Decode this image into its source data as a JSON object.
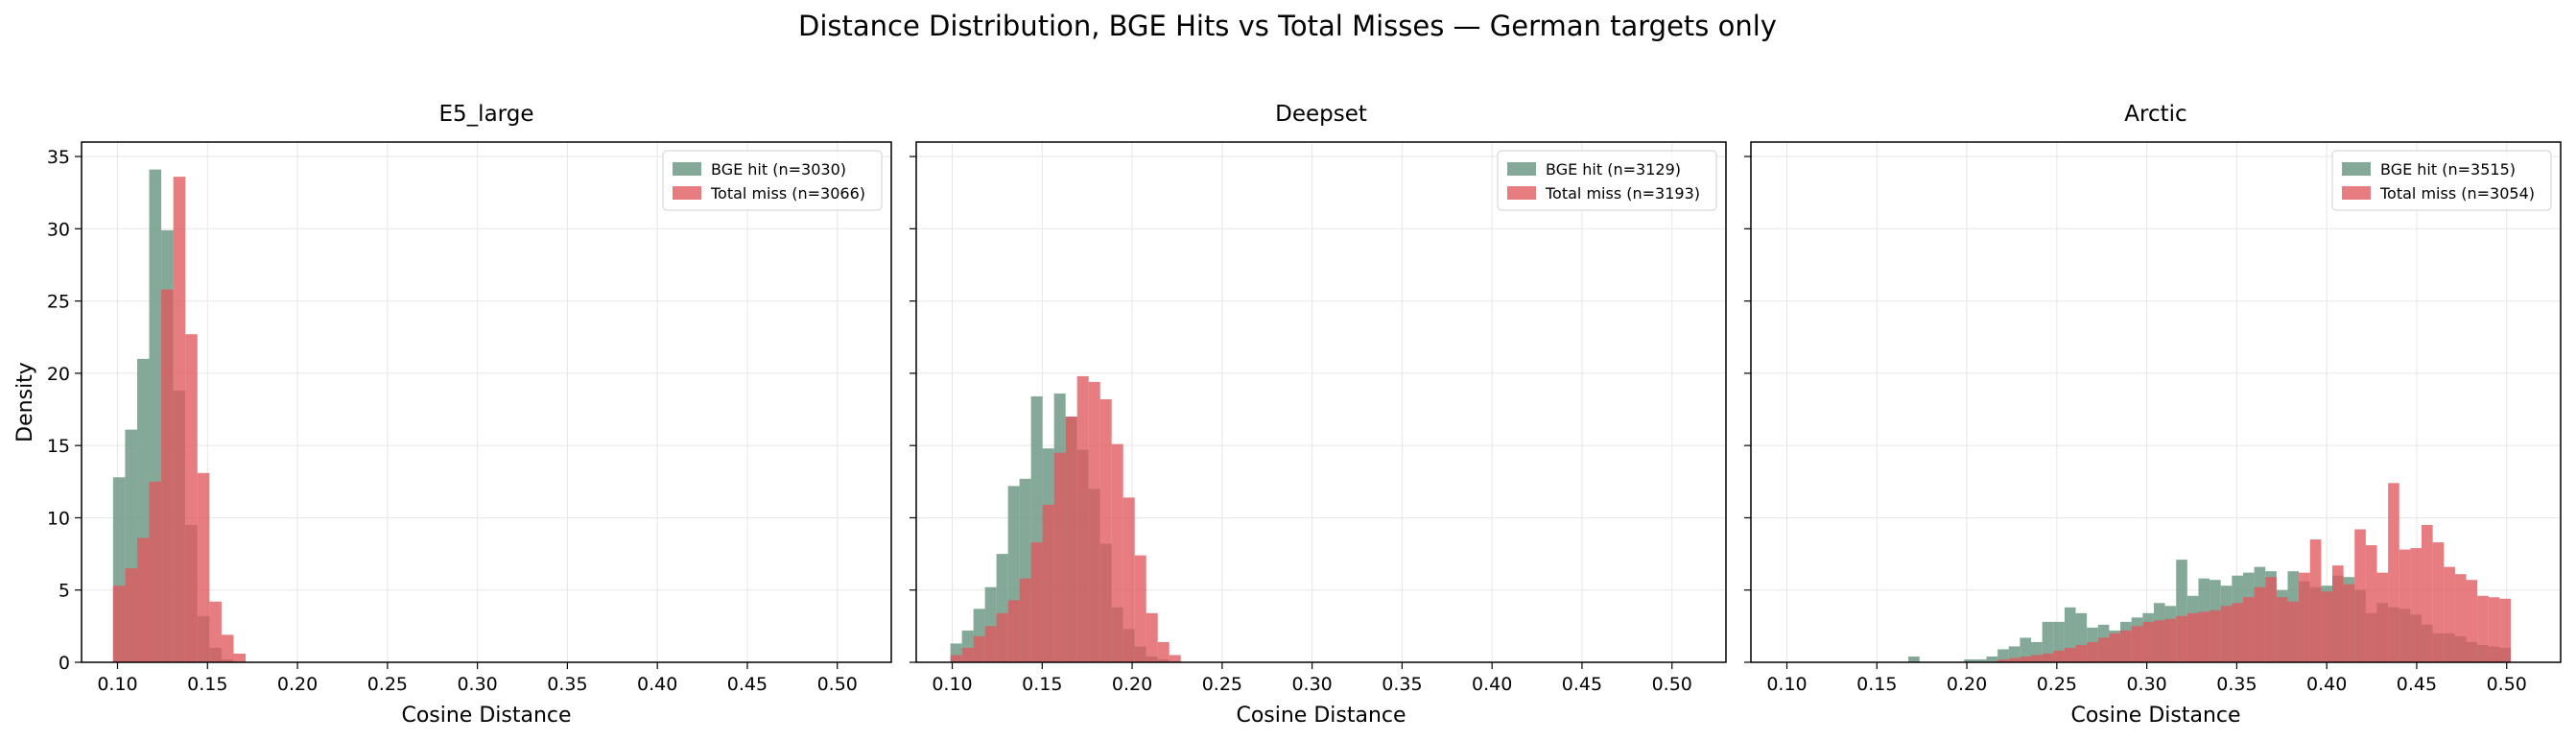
{
  "figure_title": "Distance Distribution, BGE Hits vs Total Misses — German targets only",
  "colors": {
    "hit": "#6f9a86",
    "miss": "#e0575d",
    "overlap": "#a8564f"
  },
  "chart_data": [
    {
      "type": "histogram",
      "title": "E5_large",
      "xlabel": "Cosine Distance",
      "ylabel": "Density",
      "xlim": [
        0.08,
        0.53
      ],
      "ylim": [
        0,
        36
      ],
      "xticks": [
        0.1,
        0.15,
        0.2,
        0.25,
        0.3,
        0.35,
        0.4,
        0.45,
        0.5
      ],
      "yticks": [
        0,
        5,
        10,
        15,
        20,
        25,
        30,
        35
      ],
      "xtick_labels": [
        "0.10",
        "0.15",
        "0.20",
        "0.25",
        "0.30",
        "0.35",
        "0.40",
        "0.45",
        "0.50"
      ],
      "ytick_labels": [
        "0",
        "5",
        "10",
        "15",
        "20",
        "25",
        "30",
        "35"
      ],
      "grid": true,
      "legend_position": "top-right",
      "bin_edges": [
        0.0975,
        0.1042,
        0.1109,
        0.1176,
        0.1243,
        0.131,
        0.1377,
        0.1444,
        0.1511,
        0.1578,
        0.1645,
        0.1712
      ],
      "series": [
        {
          "name": "BGE hit (n=3030)",
          "values": [
            12.8,
            16.1,
            21.0,
            34.1,
            29.9,
            18.8,
            9.5,
            3.2,
            1.0,
            0.2,
            0
          ]
        },
        {
          "name": "Total miss (n=3066)",
          "values": [
            5.3,
            6.5,
            8.6,
            12.5,
            25.8,
            33.6,
            22.7,
            13.1,
            4.2,
            1.9,
            0.6
          ]
        }
      ]
    },
    {
      "type": "histogram",
      "title": "Deepset",
      "xlabel": "Cosine Distance",
      "ylabel": "",
      "xlim": [
        0.08,
        0.53
      ],
      "ylim": [
        0,
        36
      ],
      "xticks": [
        0.1,
        0.15,
        0.2,
        0.25,
        0.3,
        0.35,
        0.4,
        0.45,
        0.5
      ],
      "yticks": [
        0,
        5,
        10,
        15,
        20,
        25,
        30,
        35
      ],
      "xtick_labels": [
        "0.10",
        "0.15",
        "0.20",
        "0.25",
        "0.30",
        "0.35",
        "0.40",
        "0.45",
        "0.50"
      ],
      "grid": true,
      "legend_position": "top-right",
      "bin_edges": [
        0.099,
        0.1054,
        0.1118,
        0.1182,
        0.1246,
        0.131,
        0.1374,
        0.1438,
        0.1502,
        0.1566,
        0.163,
        0.1694,
        0.1758,
        0.1822,
        0.1886,
        0.195,
        0.2014,
        0.2078,
        0.2142,
        0.2206,
        0.227
      ],
      "series": [
        {
          "name": "BGE hit (n=3129)",
          "values": [
            1.3,
            2.2,
            3.7,
            5.2,
            7.5,
            12.2,
            12.7,
            18.4,
            14.8,
            18.6,
            17.0,
            14.7,
            12.0,
            8.2,
            3.8,
            2.3,
            1.1,
            0.4,
            0.2,
            0
          ]
        },
        {
          "name": "Total miss (n=3193)",
          "values": [
            0.5,
            1.0,
            1.8,
            2.5,
            3.4,
            4.3,
            5.8,
            8.3,
            10.9,
            14.5,
            17.0,
            19.8,
            19.4,
            18.2,
            15.1,
            11.4,
            7.4,
            3.4,
            1.4,
            0.5
          ]
        }
      ]
    },
    {
      "type": "histogram",
      "title": "Arctic",
      "xlabel": "Cosine Distance",
      "ylabel": "",
      "xlim": [
        0.08,
        0.53
      ],
      "ylim": [
        0,
        36
      ],
      "xticks": [
        0.1,
        0.15,
        0.2,
        0.25,
        0.3,
        0.35,
        0.4,
        0.45,
        0.5
      ],
      "yticks": [
        0,
        5,
        10,
        15,
        20,
        25,
        30,
        35
      ],
      "xtick_labels": [
        "0.10",
        "0.15",
        "0.20",
        "0.25",
        "0.30",
        "0.35",
        "0.40",
        "0.45",
        "0.50"
      ],
      "grid": true,
      "legend_position": "top-right",
      "bin_edges": [
        0.1675,
        0.1737,
        0.1799,
        0.1861,
        0.1923,
        0.1985,
        0.2047,
        0.2109,
        0.2171,
        0.2233,
        0.2295,
        0.2357,
        0.2419,
        0.2481,
        0.2543,
        0.2605,
        0.2667,
        0.2729,
        0.2791,
        0.2853,
        0.2915,
        0.2977,
        0.3039,
        0.3101,
        0.3163,
        0.3225,
        0.3287,
        0.3349,
        0.3411,
        0.3473,
        0.3535,
        0.3597,
        0.3659,
        0.3721,
        0.3783,
        0.3845,
        0.3907,
        0.3969,
        0.4031,
        0.4093,
        0.4155,
        0.4217,
        0.4279,
        0.4341,
        0.4403,
        0.4465,
        0.4527,
        0.4589,
        0.4651,
        0.4713,
        0.4775,
        0.4837,
        0.4899,
        0.4961,
        0.5023
      ],
      "series": [
        {
          "name": "BGE hit (n=3515)",
          "values": [
            0.4,
            0,
            0,
            0,
            0,
            0.2,
            0.2,
            0.4,
            0.9,
            1.1,
            1.7,
            1.4,
            2.8,
            2.8,
            3.8,
            3.4,
            2.4,
            2.6,
            2.2,
            2.8,
            3.1,
            3.4,
            4.1,
            3.9,
            7.1,
            4.6,
            5.8,
            5.7,
            5.3,
            6.0,
            6.2,
            6.6,
            6.3,
            5.0,
            6.3,
            5.6,
            5.2,
            5.3,
            6.0,
            5.9,
            5.0,
            3.4,
            4.1,
            3.8,
            3.7,
            3.3,
            2.6,
            2.0,
            2.0,
            1.8,
            1.4,
            1.2,
            1.1,
            1.0
          ]
        },
        {
          "name": "Total miss (n=3054)",
          "values": [
            0,
            0,
            0,
            0,
            0,
            0,
            0,
            0,
            0.2,
            0.3,
            0.4,
            0.5,
            0.6,
            0.8,
            1.0,
            1.2,
            1.4,
            1.7,
            2.0,
            2.2,
            2.5,
            2.8,
            2.9,
            3.0,
            3.2,
            3.4,
            3.5,
            3.6,
            3.9,
            4.1,
            4.5,
            5.2,
            5.9,
            4.5,
            4.2,
            6.2,
            8.5,
            4.9,
            6.7,
            5.4,
            9.2,
            8.1,
            6.2,
            12.4,
            7.8,
            7.9,
            9.5,
            8.3,
            6.6,
            6.1,
            5.7,
            4.6,
            4.5,
            4.4
          ]
        }
      ]
    }
  ]
}
